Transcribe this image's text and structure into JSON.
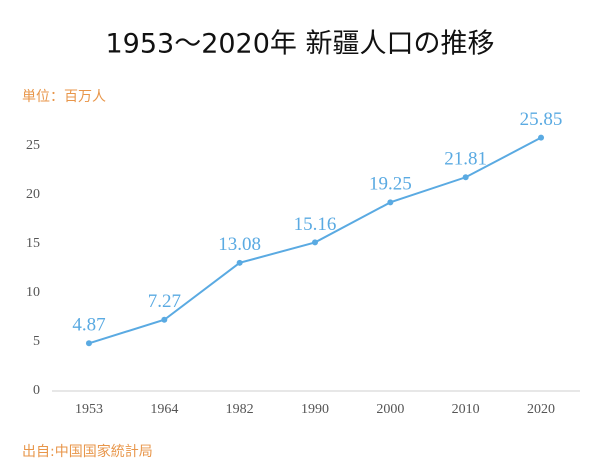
{
  "chart_data": {
    "type": "line",
    "title": "1953～2020年 新疆人口の推移",
    "subtitle": "単位：百万人",
    "source": "出自:中国国家統計局",
    "categories": [
      "1953",
      "1964",
      "1982",
      "1990",
      "2000",
      "2010",
      "2020"
    ],
    "values": [
      4.87,
      7.27,
      13.08,
      15.16,
      19.25,
      21.81,
      25.85
    ],
    "color": "#5aaae2",
    "ylim": [
      0,
      27
    ],
    "yticks": [
      0,
      5,
      10,
      15,
      20,
      25
    ],
    "grid": false
  }
}
